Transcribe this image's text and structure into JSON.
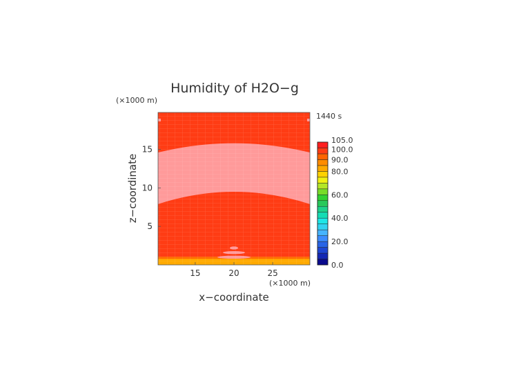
{
  "chart_data": {
    "type": "heatmap",
    "title": "Humidity of H2O−g",
    "xlabel": "x−coordinate",
    "ylabel": "z−coordinate",
    "x_unit": "(×1000 m)",
    "z_unit": "(×1000 m)",
    "time_label": "1440 s",
    "xlim": [
      10.2,
      29.8
    ],
    "ylim": [
      0,
      19.8
    ],
    "x_ticks": [
      15,
      20,
      25
    ],
    "y_ticks": [
      5,
      10,
      15
    ],
    "x_tick_labels": [
      "15",
      "20",
      "25"
    ],
    "y_tick_labels": [
      "5",
      "10",
      "15"
    ],
    "colorbar": {
      "levels": [
        0,
        5,
        10,
        15,
        20,
        25,
        30,
        35,
        40,
        45,
        50,
        55,
        60,
        65,
        70,
        75,
        80,
        85,
        90,
        95,
        100,
        105
      ],
      "colors": [
        "#0a0a8c",
        "#1428b4",
        "#1e46d2",
        "#2864e6",
        "#3c8cff",
        "#46b4ff",
        "#32d2f0",
        "#1ee6e6",
        "#14dcb4",
        "#1ed28c",
        "#28c85a",
        "#32d232",
        "#78dc28",
        "#b4e628",
        "#f0f014",
        "#ffd200",
        "#ffaa00",
        "#ff8c00",
        "#ff6400",
        "#ff3c14",
        "#ff1e1e",
        "#ffffff"
      ],
      "tick_values": [
        0,
        20,
        40,
        60,
        80,
        90,
        100,
        105
      ],
      "tick_labels": [
        "0.0",
        "20.0",
        "40.0",
        "60.0",
        "80.0",
        "90.0",
        "100.0",
        "105.0"
      ]
    },
    "field": {
      "background_level": "95–100",
      "supersaturated_band": {
        "level": "100–105",
        "top_z": [
          14.6,
          15.8,
          14.6
        ],
        "bottom_z": [
          7.9,
          9.5,
          7.9
        ],
        "x_at": [
          10.2,
          20,
          29.8
        ]
      },
      "surface_layer": {
        "level": "80–90",
        "z_max": 0.8
      },
      "surface_cap": {
        "level": "100–105",
        "x_center": 20,
        "z_range": [
          1.0,
          2.2
        ]
      }
    },
    "grid": true,
    "legend_position": "right"
  }
}
